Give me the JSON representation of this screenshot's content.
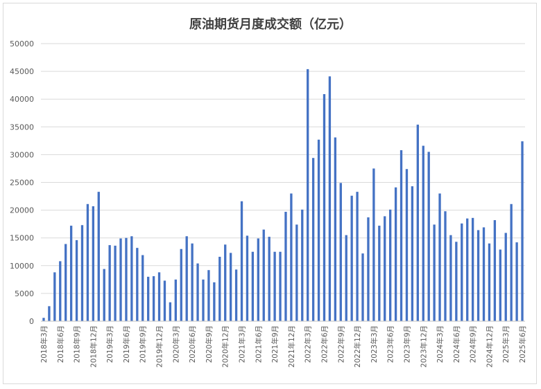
{
  "chart_data": {
    "type": "bar",
    "title": "原油期货月度成交额（亿元）",
    "xlabel": "",
    "ylabel": "",
    "ylim": [
      0,
      50000
    ],
    "yticks": [
      0,
      5000,
      10000,
      15000,
      20000,
      25000,
      30000,
      35000,
      40000,
      45000,
      50000
    ],
    "grid": true,
    "legend": "none",
    "colors": {
      "bar": "#4472c4",
      "grid": "#d9d9d9",
      "text": "#595959",
      "title": "#404040"
    },
    "tick_labels": [
      "2018年3月",
      "2018年6月",
      "2018年9月",
      "2018年12月",
      "2019年3月",
      "2019年6月",
      "2019年9月",
      "2019年12月",
      "2020年3月",
      "2020年6月",
      "2020年9月",
      "2020年12月",
      "2021年3月",
      "2021年6月",
      "2021年9月",
      "2021年12月",
      "2022年3月",
      "2022年6月",
      "2022年9月",
      "2022年12月",
      "2023年3月",
      "2023年6月",
      "2023年9月",
      "2023年12月",
      "2024年3月",
      "2024年6月",
      "2024年9月",
      "2024年12月",
      "2025年3月",
      "2025年6月"
    ],
    "categories": [
      "2018年3月",
      "2018年4月",
      "2018年5月",
      "2018年6月",
      "2018年7月",
      "2018年8月",
      "2018年9月",
      "2018年10月",
      "2018年11月",
      "2018年12月",
      "2019年1月",
      "2019年2月",
      "2019年3月",
      "2019年4月",
      "2019年5月",
      "2019年6月",
      "2019年7月",
      "2019年8月",
      "2019年9月",
      "2019年10月",
      "2019年11月",
      "2019年12月",
      "2020年1月",
      "2020年2月",
      "2020年3月",
      "2020年4月",
      "2020年5月",
      "2020年6月",
      "2020年7月",
      "2020年8月",
      "2020年9月",
      "2020年10月",
      "2020年11月",
      "2020年12月",
      "2021年1月",
      "2021年2月",
      "2021年3月",
      "2021年4月",
      "2021年5月",
      "2021年6月",
      "2021年7月",
      "2021年8月",
      "2021年9月",
      "2021年10月",
      "2021年11月",
      "2021年12月",
      "2022年1月",
      "2022年2月",
      "2022年3月",
      "2022年4月",
      "2022年5月",
      "2022年6月",
      "2022年7月",
      "2022年8月",
      "2022年9月",
      "2022年10月",
      "2022年11月",
      "2022年12月",
      "2023年1月",
      "2023年2月",
      "2023年3月",
      "2023年4月",
      "2023年5月",
      "2023年6月",
      "2023年7月",
      "2023年8月",
      "2023年9月",
      "2023年10月",
      "2023年11月",
      "2023年12月",
      "2024年1月",
      "2024年2月",
      "2024年3月",
      "2024年4月",
      "2024年5月",
      "2024年6月",
      "2024年7月",
      "2024年8月",
      "2024年9月",
      "2024年10月",
      "2024年11月",
      "2024年12月",
      "2025年1月",
      "2025年2月",
      "2025年3月",
      "2025年4月",
      "2025年5月",
      "2025年6月"
    ],
    "values": [
      600,
      2700,
      8800,
      10800,
      13900,
      17200,
      14600,
      17300,
      21100,
      20700,
      23300,
      9400,
      13700,
      13600,
      14900,
      15000,
      15300,
      13200,
      11900,
      8000,
      8100,
      8800,
      7300,
      3400,
      7500,
      13000,
      15300,
      14000,
      10400,
      7500,
      9200,
      7000,
      11600,
      13800,
      12300,
      9300,
      21600,
      15400,
      12500,
      14900,
      16500,
      15200,
      12500,
      12500,
      19700,
      23000,
      17400,
      20100,
      45400,
      29400,
      32700,
      40900,
      44100,
      33100,
      24900,
      15500,
      22600,
      23300,
      12200,
      18700,
      27500,
      17200,
      18900,
      20100,
      24100,
      30800,
      27400,
      24300,
      35400,
      31600,
      30500,
      17400,
      23000,
      19800,
      15500,
      14300,
      17600,
      18500,
      18600,
      16400,
      16900,
      14000,
      18200,
      12900,
      15900,
      21100,
      14200,
      32400
    ]
  }
}
